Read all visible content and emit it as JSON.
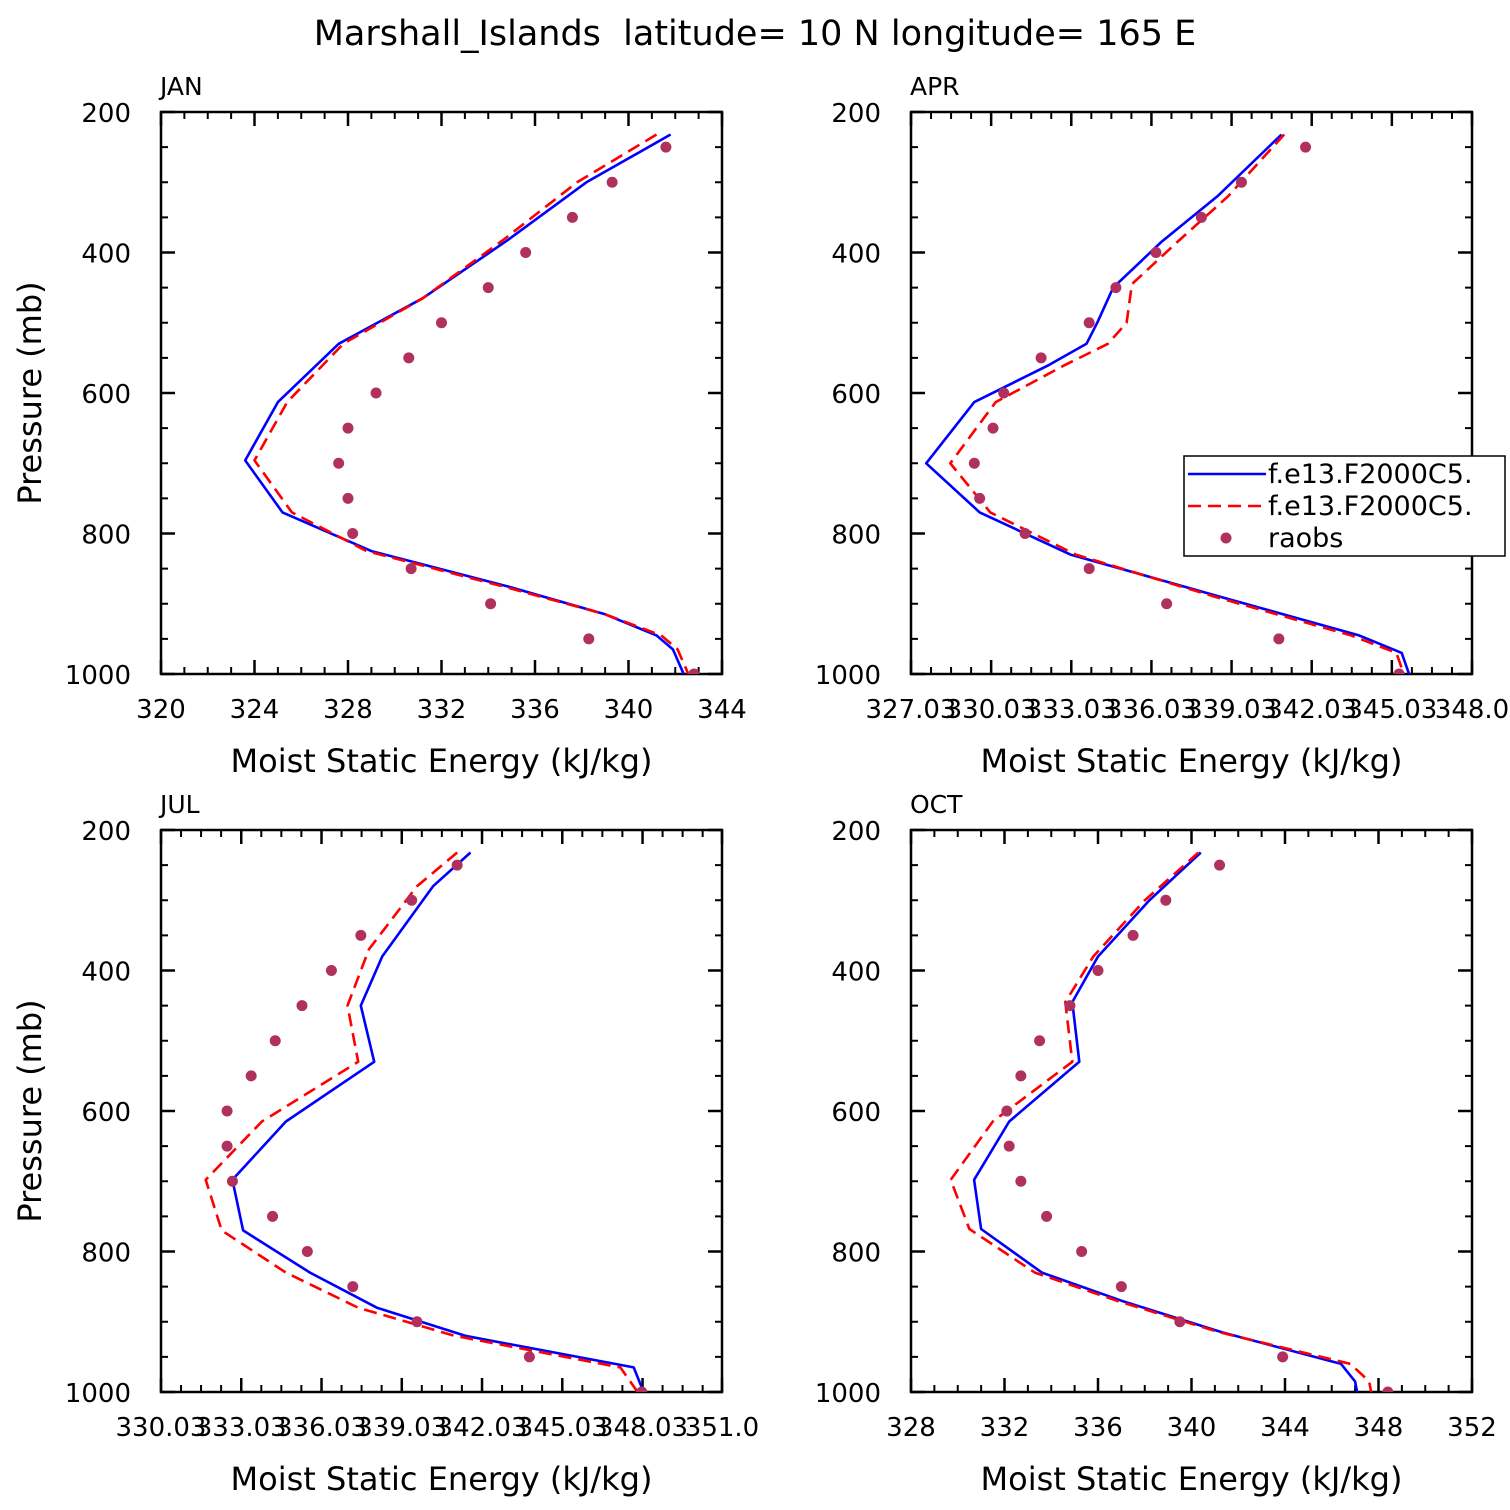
{
  "figure": {
    "title": "Marshall_Islands  latitude= 10 N longitude= 165 E"
  },
  "colors": {
    "model1": "#0000ff",
    "model2": "#ff0000",
    "obs": "#b03060",
    "axis": "#000000"
  },
  "chart_data": [
    {
      "panel": "JAN",
      "type": "line",
      "xlabel": "Moist Static Energy (kJ/kg)",
      "ylabel": "Pressure (mb)",
      "xlim": [
        320,
        344
      ],
      "ylim": [
        200,
        1000
      ],
      "y_reversed": true,
      "xticks": [
        320,
        324,
        328,
        332,
        336,
        340,
        344
      ],
      "xtick_labels": [
        "320",
        "324",
        "328",
        "332",
        "336",
        "340",
        "344"
      ],
      "yticks": [
        200,
        400,
        600,
        800,
        1000
      ],
      "ytick_labels": [
        "200",
        "400",
        "600",
        "800",
        "1000"
      ],
      "legend": null,
      "series": [
        {
          "name": "f.e13.F2000C5.",
          "style": "solid",
          "color": "#0000ff",
          "x": [
            341.8,
            338.2,
            334.8,
            331.2,
            327.6,
            325.0,
            323.6,
            325.2,
            329.0,
            334.8,
            339.0,
            341.2,
            341.9,
            342.4
          ],
          "y": [
            232,
            300,
            383,
            465,
            530,
            613,
            696,
            770,
            825,
            875,
            915,
            945,
            965,
            1003
          ]
        },
        {
          "name": "f.e13.F2000C5.",
          "style": "dashed",
          "color": "#ff0000",
          "x": [
            341.2,
            337.8,
            334.6,
            331.2,
            327.8,
            325.4,
            324.0,
            325.6,
            328.8,
            334.6,
            339.0,
            341.4,
            342.1,
            342.6
          ],
          "y": [
            232,
            300,
            383,
            465,
            530,
            613,
            696,
            770,
            825,
            875,
            915,
            945,
            965,
            1003
          ]
        },
        {
          "name": "raobs",
          "style": "markers",
          "color": "#b03060",
          "x": [
            341.6,
            339.3,
            337.6,
            335.6,
            334.0,
            332.0,
            330.6,
            329.2,
            328.0,
            327.6,
            328.0,
            328.2,
            330.7,
            334.1,
            338.3,
            342.8
          ],
          "y": [
            250,
            300,
            350,
            400,
            450,
            500,
            550,
            600,
            650,
            700,
            750,
            800,
            850,
            900,
            950,
            1000
          ]
        }
      ]
    },
    {
      "panel": "APR",
      "type": "line",
      "xlabel": "Moist Static Energy (kJ/kg)",
      "ylabel": "",
      "xlim": [
        327.03,
        348.03
      ],
      "ylim": [
        200,
        1000
      ],
      "y_reversed": true,
      "xticks": [
        327.03,
        330.03,
        333.03,
        336.03,
        339.03,
        342.03,
        345.03,
        348.03
      ],
      "xtick_labels": [
        "327.03",
        "330.03",
        "333.03",
        "336.03",
        "339.03",
        "342.03",
        "345.03",
        "348.0"
      ],
      "yticks": [
        200,
        400,
        600,
        800,
        1000
      ],
      "ytick_labels": [
        "200",
        "400",
        "600",
        "800",
        "1000"
      ],
      "legend": {
        "position": "right",
        "entries": [
          {
            "label": "f.e13.F2000C5.",
            "style": "solid",
            "color": "#0000ff"
          },
          {
            "label": "f.e13.F2000C5.",
            "style": "dashed",
            "color": "#ff0000"
          },
          {
            "label": "raobs",
            "style": "markers",
            "color": "#b03060"
          }
        ]
      },
      "series": [
        {
          "name": "f.e13.F2000C5.",
          "style": "solid",
          "color": "#0000ff",
          "x": [
            340.9,
            338.5,
            336.4,
            334.6,
            334.0,
            333.6,
            332.2,
            329.4,
            327.6,
            329.6,
            333.0,
            338.6,
            343.8,
            345.4,
            345.7
          ],
          "y": [
            232,
            320,
            385,
            450,
            500,
            530,
            560,
            613,
            700,
            770,
            830,
            890,
            945,
            970,
            1003
          ]
        },
        {
          "name": "f.e13.F2000C5.",
          "style": "dashed",
          "color": "#ff0000",
          "x": [
            341.0,
            338.9,
            337.0,
            335.3,
            335.1,
            334.4,
            332.8,
            330.2,
            328.5,
            330.0,
            333.2,
            338.4,
            343.5,
            345.2,
            345.5
          ],
          "y": [
            232,
            320,
            385,
            445,
            500,
            530,
            560,
            613,
            700,
            770,
            830,
            890,
            945,
            970,
            1003
          ]
        },
        {
          "name": "raobs",
          "style": "markers",
          "color": "#b03060",
          "x": [
            341.8,
            339.4,
            337.9,
            336.2,
            334.7,
            333.7,
            331.9,
            330.5,
            330.1,
            329.4,
            329.6,
            331.3,
            333.7,
            336.6,
            340.8,
            345.3
          ],
          "y": [
            250,
            300,
            350,
            400,
            450,
            500,
            550,
            600,
            650,
            700,
            750,
            800,
            850,
            900,
            950,
            1000
          ]
        }
      ]
    },
    {
      "panel": "JUL",
      "type": "line",
      "xlabel": "Moist Static Energy (kJ/kg)",
      "ylabel": "Pressure (mb)",
      "xlim": [
        330.03,
        351.0
      ],
      "ylim": [
        200,
        1000
      ],
      "y_reversed": true,
      "xticks": [
        330.03,
        333.03,
        336.03,
        339.03,
        342.03,
        345.03,
        348.03,
        351.0
      ],
      "xtick_labels": [
        "330.03",
        "333.03",
        "336.03",
        "339.03",
        "342.03",
        "345.03",
        "348.03",
        "351.0"
      ],
      "yticks": [
        200,
        400,
        600,
        800,
        1000
      ],
      "ytick_labels": [
        "200",
        "400",
        "600",
        "800",
        "1000"
      ],
      "legend": null,
      "series": [
        {
          "name": "f.e13.F2000C5.",
          "style": "solid",
          "color": "#0000ff",
          "x": [
            341.6,
            340.2,
            338.3,
            337.5,
            338.0,
            334.7,
            332.7,
            333.1,
            335.6,
            338.1,
            341.4,
            347.7,
            348.1
          ],
          "y": [
            232,
            280,
            380,
            450,
            530,
            615,
            698,
            770,
            830,
            880,
            920,
            965,
            1003
          ]
        },
        {
          "name": "f.e13.F2000C5.",
          "style": "dashed",
          "color": "#ff0000",
          "x": [
            341.1,
            339.6,
            337.8,
            337.0,
            337.4,
            333.8,
            331.7,
            332.3,
            334.7,
            337.4,
            341.0,
            347.2,
            347.9
          ],
          "y": [
            232,
            280,
            370,
            450,
            530,
            615,
            698,
            770,
            830,
            880,
            920,
            965,
            1003
          ]
        },
        {
          "name": "raobs",
          "style": "markers",
          "color": "#b03060",
          "x": [
            341.1,
            339.4,
            337.5,
            336.4,
            335.3,
            334.3,
            333.4,
            332.5,
            332.5,
            332.7,
            334.2,
            335.5,
            337.2,
            339.6,
            343.8,
            348.0
          ],
          "y": [
            250,
            300,
            350,
            400,
            450,
            500,
            550,
            600,
            650,
            700,
            750,
            800,
            850,
            900,
            950,
            1000
          ]
        }
      ]
    },
    {
      "panel": "OCT",
      "type": "line",
      "xlabel": "Moist Static Energy (kJ/kg)",
      "ylabel": "",
      "xlim": [
        328,
        352
      ],
      "ylim": [
        200,
        1000
      ],
      "y_reversed": true,
      "xticks": [
        328,
        332,
        336,
        340,
        344,
        348,
        352
      ],
      "xtick_labels": [
        "328",
        "332",
        "336",
        "340",
        "344",
        "348",
        "352"
      ],
      "yticks": [
        200,
        400,
        600,
        800,
        1000
      ],
      "ytick_labels": [
        "200",
        "400",
        "600",
        "800",
        "1000"
      ],
      "legend": null,
      "series": [
        {
          "name": "f.e13.F2000C5.",
          "style": "solid",
          "color": "#0000ff",
          "x": [
            340.4,
            338.2,
            336.0,
            334.9,
            335.2,
            332.2,
            330.7,
            331.0,
            333.6,
            337.0,
            341.3,
            346.4,
            347.0,
            347.1
          ],
          "y": [
            232,
            300,
            380,
            445,
            530,
            615,
            698,
            768,
            830,
            870,
            915,
            960,
            985,
            1003
          ]
        },
        {
          "name": "f.e13.F2000C5.",
          "style": "dashed",
          "color": "#ff0000",
          "x": [
            340.3,
            338.0,
            335.8,
            334.6,
            334.9,
            331.5,
            329.7,
            330.5,
            333.3,
            336.8,
            341.2,
            346.8,
            347.6,
            347.7
          ],
          "y": [
            232,
            300,
            380,
            445,
            530,
            615,
            698,
            768,
            830,
            870,
            915,
            960,
            985,
            1003
          ]
        },
        {
          "name": "raobs",
          "style": "markers",
          "color": "#b03060",
          "x": [
            341.2,
            338.9,
            337.5,
            336.0,
            334.8,
            333.5,
            332.7,
            332.1,
            332.2,
            332.7,
            333.8,
            335.3,
            337.0,
            339.5,
            343.9,
            348.4
          ],
          "y": [
            250,
            300,
            350,
            400,
            450,
            500,
            550,
            600,
            650,
            700,
            750,
            800,
            850,
            900,
            950,
            1000
          ]
        }
      ]
    }
  ]
}
